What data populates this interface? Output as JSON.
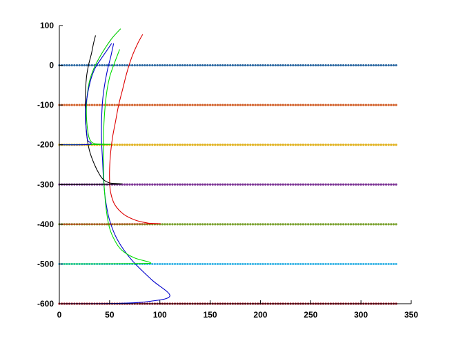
{
  "chart_data": {
    "type": "line",
    "title": "",
    "xlabel": "",
    "ylabel": "",
    "xlim": [
      0,
      350
    ],
    "ylim": [
      -600,
      100
    ],
    "xticks": [
      0,
      50,
      100,
      150,
      200,
      250,
      300,
      350
    ],
    "yticks": [
      -600,
      -500,
      -400,
      -300,
      -200,
      -100,
      0,
      100
    ],
    "grid": false,
    "legend": "none",
    "dotted_lines": [
      {
        "y": 0,
        "x_range": [
          0,
          335
        ],
        "color": "#2e6aa3"
      },
      {
        "y": -100,
        "x_range": [
          0,
          335
        ],
        "color": "#d2602a"
      },
      {
        "y": -200,
        "x_range": [
          0,
          335
        ],
        "color": "#e0b11d"
      },
      {
        "y": -300,
        "x_range": [
          0,
          335
        ],
        "color": "#7b3294"
      },
      {
        "y": -400,
        "x_range": [
          0,
          335
        ],
        "color": "#7aa12e"
      },
      {
        "y": -500,
        "x_range": [
          0,
          335
        ],
        "color": "#3cb6e6"
      },
      {
        "y": -600,
        "x_range": [
          0,
          335
        ],
        "color": "#b2182b"
      }
    ],
    "series": [
      {
        "color": "#0000cc",
        "points": [
          [
            0,
            -600
          ],
          [
            60,
            -599
          ],
          [
            90,
            -594
          ],
          [
            110,
            -580
          ],
          [
            92,
            -540
          ],
          [
            72,
            -490
          ],
          [
            58,
            -440
          ],
          [
            50,
            -390
          ],
          [
            46,
            -340
          ],
          [
            44,
            -290
          ],
          [
            43,
            -240
          ],
          [
            42,
            -190
          ],
          [
            42,
            -140
          ],
          [
            43,
            -90
          ],
          [
            45,
            -50
          ],
          [
            48,
            -10
          ],
          [
            51,
            20
          ],
          [
            54,
            55
          ]
        ]
      },
      {
        "color": "#00dd00",
        "points": [
          [
            0,
            -500
          ],
          [
            80,
            -499
          ],
          [
            90,
            -496
          ],
          [
            75,
            -485
          ],
          [
            62,
            -465
          ],
          [
            55,
            -440
          ],
          [
            50,
            -410
          ],
          [
            47,
            -370
          ],
          [
            45,
            -320
          ],
          [
            44,
            -270
          ],
          [
            44,
            -220
          ],
          [
            44,
            -170
          ],
          [
            45,
            -120
          ],
          [
            47,
            -70
          ],
          [
            50,
            -30
          ],
          [
            54,
            0
          ],
          [
            60,
            40
          ]
        ]
      },
      {
        "color": "#dd0000",
        "points": [
          [
            0,
            -400
          ],
          [
            95,
            -399
          ],
          [
            88,
            -397
          ],
          [
            76,
            -390
          ],
          [
            64,
            -375
          ],
          [
            55,
            -350
          ],
          [
            51,
            -320
          ],
          [
            50,
            -290
          ],
          [
            50,
            -260
          ],
          [
            51,
            -220
          ],
          [
            53,
            -180
          ],
          [
            56,
            -140
          ],
          [
            59,
            -100
          ],
          [
            63,
            -60
          ],
          [
            67,
            -20
          ],
          [
            72,
            20
          ],
          [
            78,
            55
          ],
          [
            83,
            78
          ]
        ]
      },
      {
        "color": "#000000",
        "points": [
          [
            0,
            -300
          ],
          [
            60,
            -299
          ],
          [
            50,
            -296
          ],
          [
            44,
            -288
          ],
          [
            40,
            -275
          ],
          [
            35,
            -250
          ],
          [
            30,
            -215
          ],
          [
            27,
            -170
          ],
          [
            26,
            -120
          ],
          [
            26,
            -70
          ],
          [
            27,
            -30
          ],
          [
            29,
            0
          ],
          [
            32,
            30
          ],
          [
            34,
            55
          ],
          [
            36,
            75
          ]
        ]
      },
      {
        "color": "#00cc00",
        "points": [
          [
            0,
            -200
          ],
          [
            50,
            -199
          ],
          [
            35,
            -197
          ],
          [
            30,
            -185
          ],
          [
            28,
            -160
          ],
          [
            27,
            -130
          ],
          [
            27,
            -100
          ],
          [
            28,
            -70
          ],
          [
            30,
            -40
          ],
          [
            34,
            -10
          ],
          [
            40,
            20
          ],
          [
            46,
            45
          ],
          [
            53,
            70
          ],
          [
            61,
            92
          ]
        ]
      },
      {
        "color": "#0000cc",
        "points": [
          [
            0,
            -200
          ],
          [
            30,
            -199
          ],
          [
            28,
            -188
          ],
          [
            27,
            -165
          ],
          [
            26,
            -140
          ],
          [
            26,
            -115
          ],
          [
            27,
            -90
          ],
          [
            29,
            -60
          ],
          [
            32,
            -30
          ],
          [
            36,
            -5
          ],
          [
            42,
            18
          ],
          [
            48,
            40
          ],
          [
            52,
            55
          ]
        ]
      }
    ]
  }
}
